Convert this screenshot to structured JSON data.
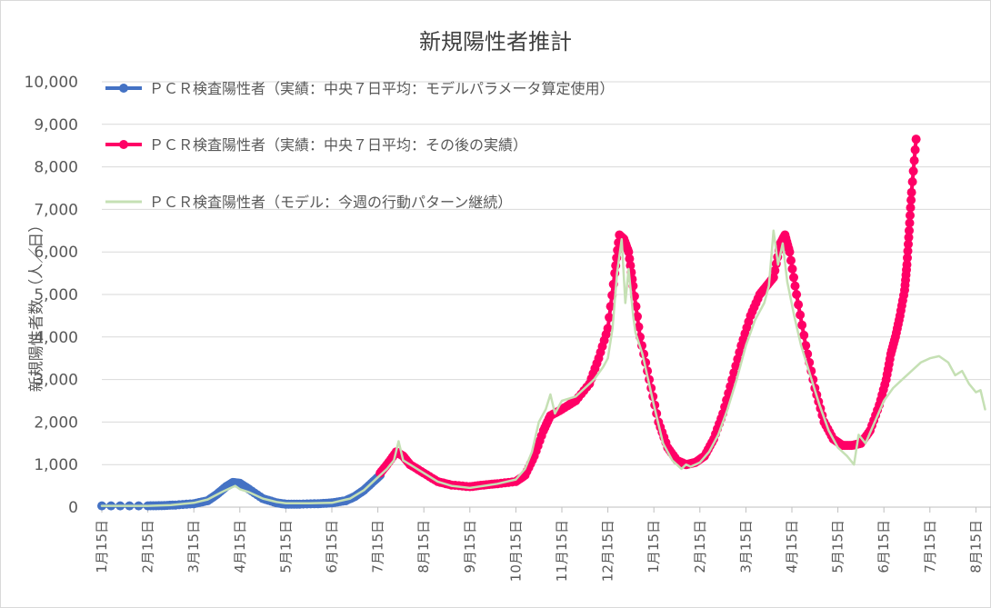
{
  "chart_data": {
    "type": "line",
    "title": "新規陽性者推計",
    "ylabel": "新規陽性者数 （人／日）",
    "xlabel": "",
    "ylim": [
      0,
      10000
    ],
    "y_ticks": [
      "0",
      "1,000",
      "2,000",
      "3,000",
      "4,000",
      "5,000",
      "6,000",
      "7,000",
      "8,000",
      "9,000",
      "10,000"
    ],
    "x_ticks": [
      "1月15日",
      "2月15日",
      "3月15日",
      "4月15日",
      "5月15日",
      "6月15日",
      "7月15日",
      "8月15日",
      "9月15日",
      "10月15日",
      "11月15日",
      "12月15日",
      "1月15日",
      "2月15日",
      "3月15日",
      "4月15日",
      "5月15日",
      "6月15日",
      "7月15日",
      "8月15日"
    ],
    "grid": true,
    "legend_position": "top-left",
    "series": [
      {
        "name": "ＰＣＲ検査陽性者（実績：中央７日平均：モデルパラメータ算定使用）",
        "color": "#4472c4",
        "marker": true,
        "points": [
          [
            0,
            30
          ],
          [
            1,
            30
          ],
          [
            1.3,
            35
          ],
          [
            1.6,
            50
          ],
          [
            2,
            80
          ],
          [
            2.3,
            150
          ],
          [
            2.5,
            300
          ],
          [
            2.7,
            480
          ],
          [
            2.85,
            580
          ],
          [
            3,
            560
          ],
          [
            3.2,
            420
          ],
          [
            3.5,
            200
          ],
          [
            3.8,
            100
          ],
          [
            4,
            70
          ],
          [
            4.3,
            70
          ],
          [
            4.7,
            80
          ],
          [
            5,
            100
          ],
          [
            5.3,
            150
          ],
          [
            5.5,
            250
          ],
          [
            5.7,
            400
          ],
          [
            5.9,
            600
          ],
          [
            6.05,
            750
          ]
        ]
      },
      {
        "name": "ＰＣＲ検査陽性者（実績：中央７日平均：その後の実績）",
        "color": "#ff0066",
        "marker": true,
        "points": [
          [
            6.05,
            800
          ],
          [
            6.2,
            1000
          ],
          [
            6.4,
            1300
          ],
          [
            6.55,
            1200
          ],
          [
            6.7,
            1000
          ],
          [
            7,
            800
          ],
          [
            7.3,
            600
          ],
          [
            7.6,
            520
          ],
          [
            8,
            480
          ],
          [
            8.3,
            520
          ],
          [
            8.6,
            550
          ],
          [
            9,
            600
          ],
          [
            9.2,
            750
          ],
          [
            9.4,
            1200
          ],
          [
            9.6,
            1800
          ],
          [
            9.75,
            2150
          ],
          [
            10,
            2300
          ],
          [
            10.3,
            2500
          ],
          [
            10.6,
            2900
          ],
          [
            10.8,
            3500
          ],
          [
            11,
            4200
          ],
          [
            11.15,
            5500
          ],
          [
            11.25,
            6400
          ],
          [
            11.35,
            6300
          ],
          [
            11.45,
            6000
          ],
          [
            11.55,
            5200
          ],
          [
            11.7,
            4000
          ],
          [
            11.9,
            3000
          ],
          [
            12.1,
            2000
          ],
          [
            12.3,
            1400
          ],
          [
            12.5,
            1100
          ],
          [
            12.7,
            1000
          ],
          [
            12.9,
            1050
          ],
          [
            13.1,
            1200
          ],
          [
            13.3,
            1600
          ],
          [
            13.5,
            2200
          ],
          [
            13.7,
            3000
          ],
          [
            13.9,
            3800
          ],
          [
            14.1,
            4500
          ],
          [
            14.3,
            5000
          ],
          [
            14.45,
            5200
          ],
          [
            14.6,
            5400
          ],
          [
            14.75,
            6200
          ],
          [
            14.85,
            6400
          ],
          [
            14.95,
            6000
          ],
          [
            15.1,
            5000
          ],
          [
            15.3,
            3800
          ],
          [
            15.5,
            2800
          ],
          [
            15.7,
            2000
          ],
          [
            15.9,
            1600
          ],
          [
            16.1,
            1450
          ],
          [
            16.3,
            1450
          ],
          [
            16.5,
            1500
          ],
          [
            16.7,
            1800
          ],
          [
            16.9,
            2400
          ],
          [
            17.05,
            3000
          ],
          [
            17.15,
            3600
          ],
          [
            17.25,
            4000
          ],
          [
            17.35,
            4500
          ],
          [
            17.45,
            5100
          ],
          [
            17.5,
            5700
          ],
          [
            17.55,
            6500
          ],
          [
            17.6,
            7400
          ],
          [
            17.7,
            8650
          ]
        ]
      },
      {
        "name": "ＰＣＲ検査陽性者（モデル：今週の行動パターン継続）",
        "color": "#c5e0b4",
        "marker": false,
        "points": [
          [
            0,
            30
          ],
          [
            1,
            30
          ],
          [
            1.5,
            50
          ],
          [
            2,
            100
          ],
          [
            2.3,
            180
          ],
          [
            2.6,
            350
          ],
          [
            2.8,
            450
          ],
          [
            2.9,
            500
          ],
          [
            3,
            420
          ],
          [
            3.2,
            350
          ],
          [
            3.5,
            200
          ],
          [
            3.8,
            120
          ],
          [
            4,
            90
          ],
          [
            4.5,
            90
          ],
          [
            5,
            100
          ],
          [
            5.4,
            200
          ],
          [
            5.7,
            400
          ],
          [
            6,
            700
          ],
          [
            6.2,
            900
          ],
          [
            6.35,
            1100
          ],
          [
            6.45,
            1550
          ],
          [
            6.55,
            1100
          ],
          [
            6.7,
            1000
          ],
          [
            7,
            800
          ],
          [
            7.3,
            600
          ],
          [
            7.6,
            500
          ],
          [
            8,
            450
          ],
          [
            8.3,
            500
          ],
          [
            8.6,
            550
          ],
          [
            9,
            650
          ],
          [
            9.2,
            900
          ],
          [
            9.35,
            1300
          ],
          [
            9.5,
            2000
          ],
          [
            9.65,
            2300
          ],
          [
            9.75,
            2650
          ],
          [
            9.85,
            2200
          ],
          [
            10,
            2500
          ],
          [
            10.3,
            2600
          ],
          [
            10.5,
            2800
          ],
          [
            10.7,
            3000
          ],
          [
            10.9,
            3300
          ],
          [
            11,
            3500
          ],
          [
            11.1,
            4200
          ],
          [
            11.2,
            5500
          ],
          [
            11.3,
            6300
          ],
          [
            11.38,
            4800
          ],
          [
            11.45,
            5600
          ],
          [
            11.55,
            4500
          ],
          [
            11.6,
            4100
          ],
          [
            11.75,
            3600
          ],
          [
            12,
            2400
          ],
          [
            12.2,
            1500
          ],
          [
            12.4,
            1100
          ],
          [
            12.6,
            900
          ],
          [
            12.7,
            1000
          ],
          [
            12.8,
            950
          ],
          [
            13,
            1050
          ],
          [
            13.2,
            1300
          ],
          [
            13.4,
            1700
          ],
          [
            13.6,
            2300
          ],
          [
            13.8,
            3000
          ],
          [
            14,
            3800
          ],
          [
            14.2,
            4400
          ],
          [
            14.4,
            4800
          ],
          [
            14.5,
            5200
          ],
          [
            14.6,
            6500
          ],
          [
            14.7,
            5700
          ],
          [
            14.8,
            6200
          ],
          [
            14.9,
            5300
          ],
          [
            15.05,
            4500
          ],
          [
            15.2,
            3800
          ],
          [
            15.4,
            3100
          ],
          [
            15.6,
            2400
          ],
          [
            15.8,
            1800
          ],
          [
            16,
            1400
          ],
          [
            16.2,
            1200
          ],
          [
            16.35,
            1000
          ],
          [
            16.45,
            1700
          ],
          [
            16.6,
            1500
          ],
          [
            16.8,
            2000
          ],
          [
            17,
            2500
          ],
          [
            17.2,
            2800
          ],
          [
            17.4,
            3000
          ],
          [
            17.6,
            3200
          ],
          [
            17.8,
            3400
          ],
          [
            18,
            3500
          ],
          [
            18.2,
            3550
          ],
          [
            18.4,
            3400
          ],
          [
            18.55,
            3100
          ],
          [
            18.7,
            3200
          ],
          [
            18.85,
            2900
          ],
          [
            19,
            2700
          ],
          [
            19.1,
            2750
          ],
          [
            19.2,
            2300
          ]
        ]
      }
    ]
  }
}
